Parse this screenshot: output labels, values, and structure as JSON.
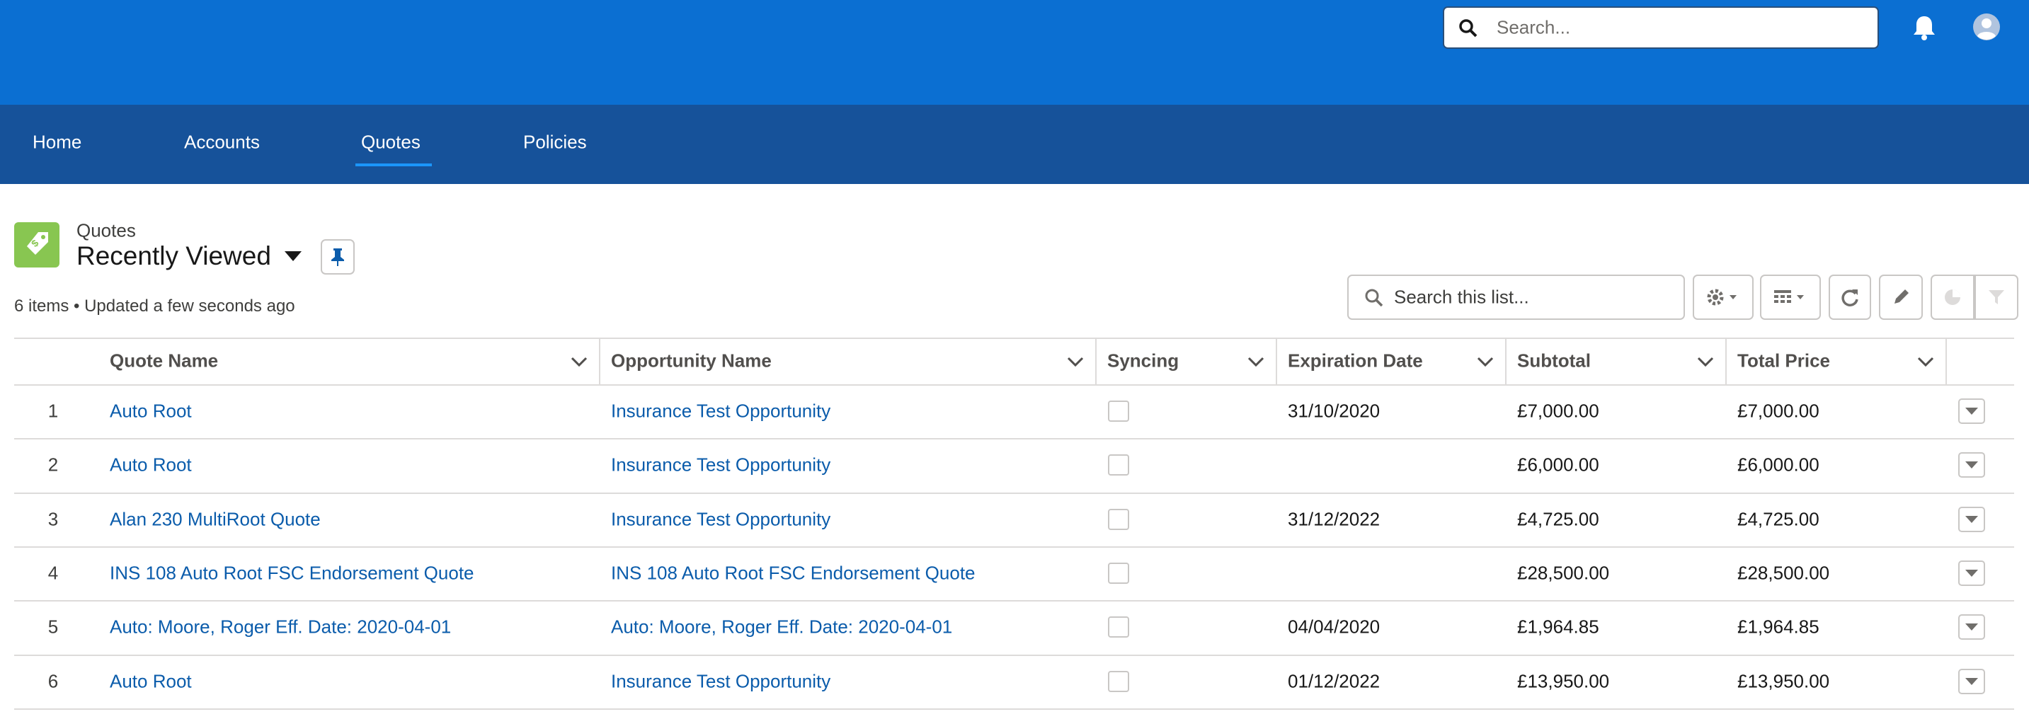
{
  "header": {
    "search_placeholder": "Search..."
  },
  "nav": [
    "Home",
    "Accounts",
    "Quotes",
    "Policies"
  ],
  "list": {
    "object_label": "Quotes",
    "view_name": "Recently Viewed",
    "status": "6 items • Updated a few seconds ago",
    "search_placeholder": "Search this list..."
  },
  "table": {
    "columns": [
      "Quote Name",
      "Opportunity Name",
      "Syncing",
      "Expiration Date",
      "Subtotal",
      "Total Price"
    ],
    "rows": [
      {
        "index": 1,
        "quote_name": "Auto Root",
        "opportunity_name": "Insurance Test Opportunity",
        "expiration_date": "31/10/2020",
        "subtotal": "£7,000.00",
        "total_price": "£7,000.00"
      },
      {
        "index": 2,
        "quote_name": "Auto Root",
        "opportunity_name": "Insurance Test Opportunity",
        "subtotal": "£6,000.00",
        "total_price": "£6,000.00"
      },
      {
        "index": 3,
        "quote_name": "Alan 230 MultiRoot Quote",
        "opportunity_name": "Insurance Test Opportunity",
        "expiration_date": "31/12/2022",
        "subtotal": "£4,725.00",
        "total_price": "£4,725.00"
      },
      {
        "index": 4,
        "quote_name": "INS 108 Auto Root FSC Endorsement Quote",
        "opportunity_name": "INS 108 Auto Root FSC Endorsement Quote",
        "subtotal": "£28,500.00",
        "total_price": "£28,500.00"
      },
      {
        "index": 5,
        "quote_name": "Auto: Moore, Roger Eff. Date: 2020-04-01",
        "opportunity_name": "Auto: Moore, Roger Eff. Date: 2020-04-01",
        "expiration_date": "04/04/2020",
        "subtotal": "£1,964.85",
        "total_price": "£1,964.85"
      },
      {
        "index": 6,
        "quote_name": "Auto Root",
        "opportunity_name": "Insurance Test Opportunity",
        "expiration_date": "01/12/2022",
        "subtotal": "£13,950.00",
        "total_price": "£13,950.00"
      }
    ]
  }
}
